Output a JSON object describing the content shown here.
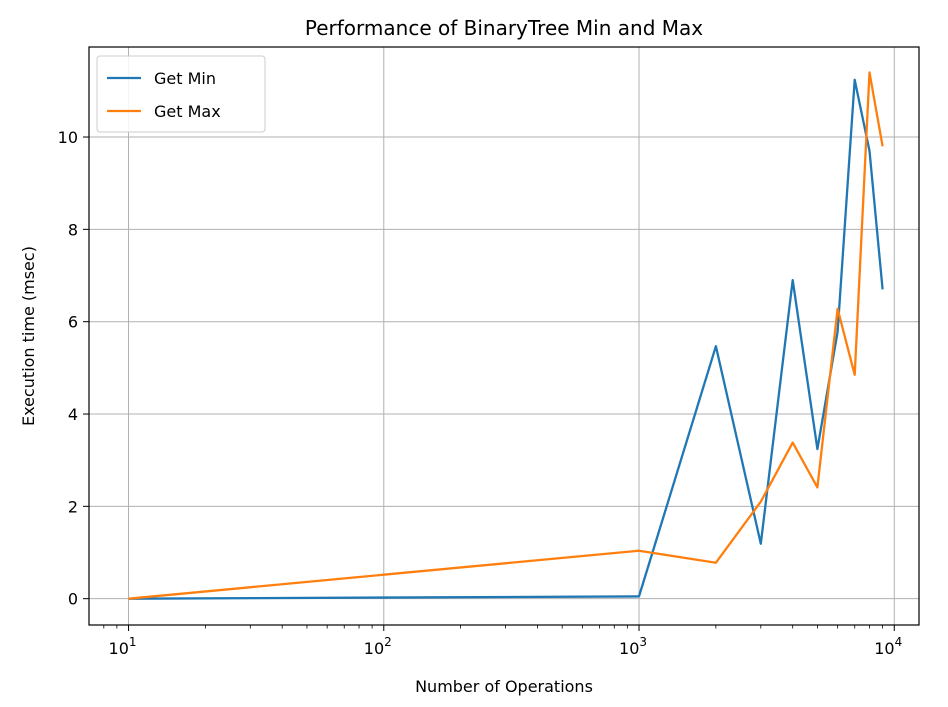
{
  "chart_data": {
    "type": "line",
    "title": "Performance of BinaryTree Min and Max",
    "xlabel": "Number of Operations",
    "ylabel": "Execution time (msec)",
    "xscale": "log",
    "xlim": [
      7.0,
      12500
    ],
    "ylim": [
      -0.57,
      11.95
    ],
    "grid": true,
    "legend_position": "top-left",
    "x_ticks": [
      {
        "value": 10,
        "base": "10",
        "exp": "1"
      },
      {
        "value": 100,
        "base": "10",
        "exp": "2"
      },
      {
        "value": 1000,
        "base": "10",
        "exp": "3"
      },
      {
        "value": 10000,
        "base": "10",
        "exp": "4"
      }
    ],
    "y_ticks": [
      0,
      2,
      4,
      6,
      8,
      10
    ],
    "series": [
      {
        "name": "Get Min",
        "color": "#1f77b4",
        "x": [
          10,
          1000,
          2000,
          3000,
          4000,
          5000,
          6000,
          7000,
          8000,
          9000
        ],
        "y": [
          0.0,
          0.05,
          5.47,
          1.19,
          6.9,
          3.24,
          5.78,
          11.24,
          9.7,
          6.7
        ]
      },
      {
        "name": "Get Max",
        "color": "#ff7f0e",
        "x": [
          10,
          1000,
          2000,
          3000,
          4000,
          5000,
          6000,
          7000,
          8000,
          9000
        ],
        "y": [
          0.0,
          1.04,
          0.78,
          2.1,
          3.38,
          2.41,
          6.28,
          4.85,
          11.4,
          9.8
        ]
      }
    ]
  }
}
